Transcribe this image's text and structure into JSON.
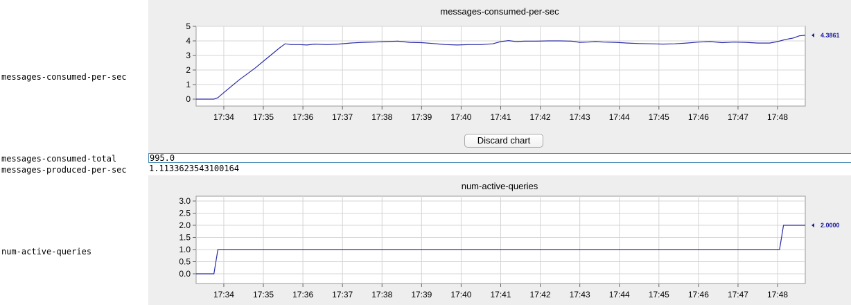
{
  "rows": [
    {
      "label": "messages-consumed-per-sec"
    },
    {
      "label": "messages-consumed-total",
      "value": "995.0"
    },
    {
      "label": "messages-produced-per-sec",
      "value": "1.1133623543100164"
    },
    {
      "label": "num-active-queries"
    }
  ],
  "discard_label": "Discard chart",
  "chart_data": [
    {
      "type": "line",
      "title": "messages-consumed-per-sec",
      "x_ticks": [
        "17:34",
        "17:35",
        "17:36",
        "17:37",
        "17:38",
        "17:39",
        "17:40",
        "17:41",
        "17:42",
        "17:43",
        "17:44",
        "17:45",
        "17:46",
        "17:47",
        "17:48"
      ],
      "xlim": [
        "17:33.3",
        "17:48.7"
      ],
      "ylim": [
        0,
        5
      ],
      "y_ticks": [
        "0",
        "1",
        "2",
        "3",
        "4",
        "5"
      ],
      "grid": true,
      "line_color": "#2a2aa8",
      "x": [
        33.3,
        33.75,
        33.85,
        34.0,
        34.2,
        34.4,
        34.6,
        34.8,
        35.0,
        35.2,
        35.4,
        35.55,
        35.7,
        35.9,
        36.1,
        36.3,
        36.6,
        36.9,
        37.2,
        37.5,
        37.8,
        38.1,
        38.4,
        38.7,
        39.0,
        39.3,
        39.6,
        39.9,
        40.2,
        40.5,
        40.8,
        41.0,
        41.2,
        41.4,
        41.6,
        41.9,
        42.2,
        42.5,
        42.8,
        43.0,
        43.2,
        43.4,
        43.6,
        43.9,
        44.2,
        44.5,
        44.8,
        45.1,
        45.4,
        45.7,
        46.0,
        46.3,
        46.6,
        46.9,
        47.2,
        47.5,
        47.8,
        48.0,
        48.2,
        48.4,
        48.55,
        48.7
      ],
      "y": [
        0,
        0,
        0.1,
        0.45,
        0.9,
        1.35,
        1.75,
        2.15,
        2.6,
        3.05,
        3.5,
        3.8,
        3.75,
        3.75,
        3.72,
        3.78,
        3.75,
        3.78,
        3.85,
        3.9,
        3.92,
        3.95,
        3.98,
        3.9,
        3.88,
        3.82,
        3.75,
        3.72,
        3.75,
        3.75,
        3.8,
        3.95,
        4.02,
        3.95,
        3.98,
        3.98,
        4.0,
        4.0,
        3.98,
        3.9,
        3.92,
        3.95,
        3.92,
        3.9,
        3.85,
        3.82,
        3.8,
        3.78,
        3.8,
        3.85,
        3.92,
        3.95,
        3.88,
        3.92,
        3.9,
        3.85,
        3.85,
        3.95,
        4.1,
        4.2,
        4.35,
        4.3861
      ],
      "last_value_label": "4.3861"
    },
    {
      "type": "line",
      "title": "num-active-queries",
      "x_ticks": [
        "17:34",
        "17:35",
        "17:36",
        "17:37",
        "17:38",
        "17:39",
        "17:40",
        "17:41",
        "17:42",
        "17:43",
        "17:44",
        "17:45",
        "17:46",
        "17:47",
        "17:48"
      ],
      "xlim": [
        "17:33.3",
        "17:48.7"
      ],
      "ylim": [
        0,
        3
      ],
      "y_ticks": [
        "0.0",
        "0.5",
        "1.0",
        "1.5",
        "2.0",
        "2.5",
        "3.0"
      ],
      "grid": true,
      "line_color": "#2a2aa8",
      "x": [
        33.3,
        33.75,
        33.85,
        48.05,
        48.15,
        48.7
      ],
      "y": [
        0,
        0,
        1,
        1,
        2,
        2
      ],
      "last_value_label": "2.0000"
    }
  ]
}
